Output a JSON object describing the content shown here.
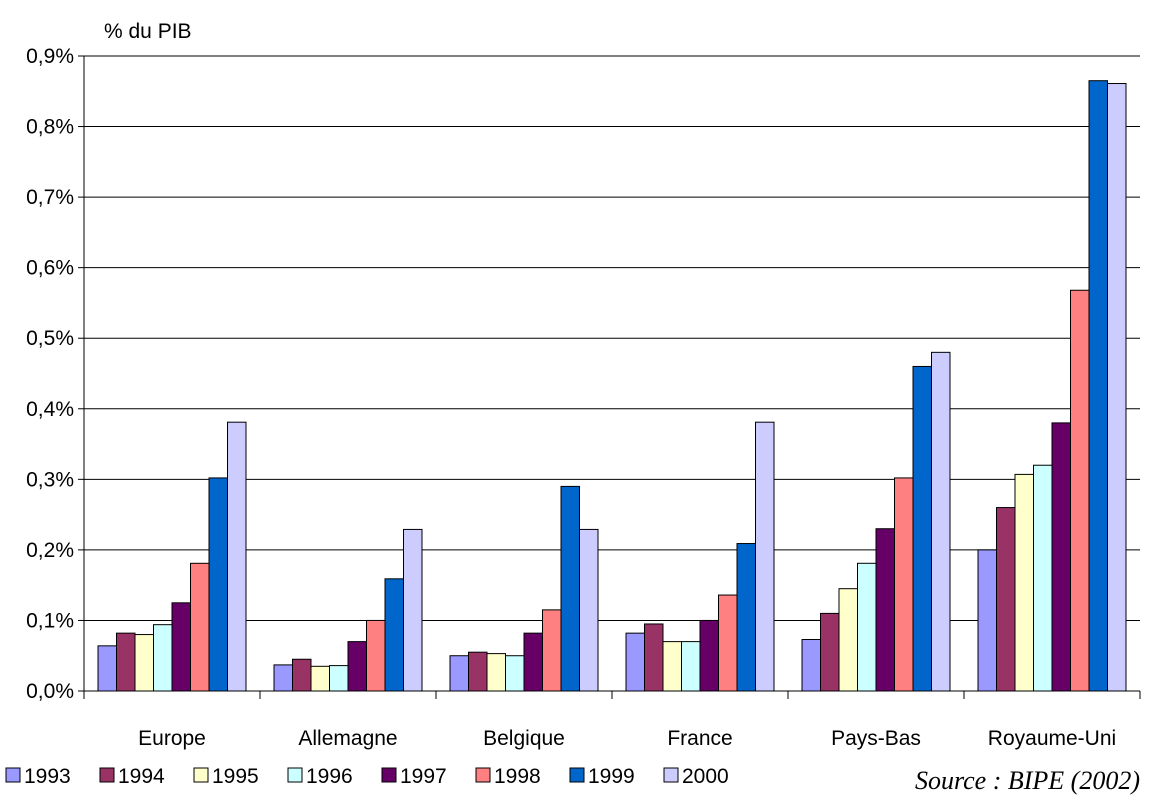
{
  "chart_data": {
    "type": "bar",
    "ylabel": "% du PIB",
    "ylim": [
      0,
      0.9
    ],
    "yticks": [
      "0,0%",
      "0,1%",
      "0,2%",
      "0,3%",
      "0,4%",
      "0,5%",
      "0,6%",
      "0,7%",
      "0,8%",
      "0,9%"
    ],
    "grid": true,
    "legend_position": "bottom",
    "categories": [
      "Europe",
      "Allemagne",
      "Belgique",
      "France",
      "Pays-Bas",
      "Royaume-Uni"
    ],
    "series": [
      {
        "name": "1993",
        "color": "#9999ff",
        "values": [
          0.064,
          0.037,
          0.05,
          0.082,
          0.073,
          0.2
        ]
      },
      {
        "name": "1994",
        "color": "#993366",
        "values": [
          0.082,
          0.045,
          0.055,
          0.095,
          0.11,
          0.26
        ]
      },
      {
        "name": "1995",
        "color": "#ffffcc",
        "values": [
          0.08,
          0.035,
          0.053,
          0.07,
          0.145,
          0.307
        ]
      },
      {
        "name": "1996",
        "color": "#ccffff",
        "values": [
          0.094,
          0.036,
          0.05,
          0.07,
          0.181,
          0.32
        ]
      },
      {
        "name": "1997",
        "color": "#660066",
        "values": [
          0.125,
          0.07,
          0.082,
          0.1,
          0.23,
          0.38
        ]
      },
      {
        "name": "1998",
        "color": "#ff8080",
        "values": [
          0.181,
          0.1,
          0.115,
          0.136,
          0.302,
          0.568
        ]
      },
      {
        "name": "1999",
        "color": "#0066cc",
        "values": [
          0.302,
          0.159,
          0.29,
          0.209,
          0.46,
          0.865
        ]
      },
      {
        "name": "2000",
        "color": "#ccccff",
        "values": [
          0.381,
          0.229,
          0.229,
          0.381,
          0.48,
          0.861
        ]
      }
    ],
    "source": "Source : BIPE (2002)"
  }
}
